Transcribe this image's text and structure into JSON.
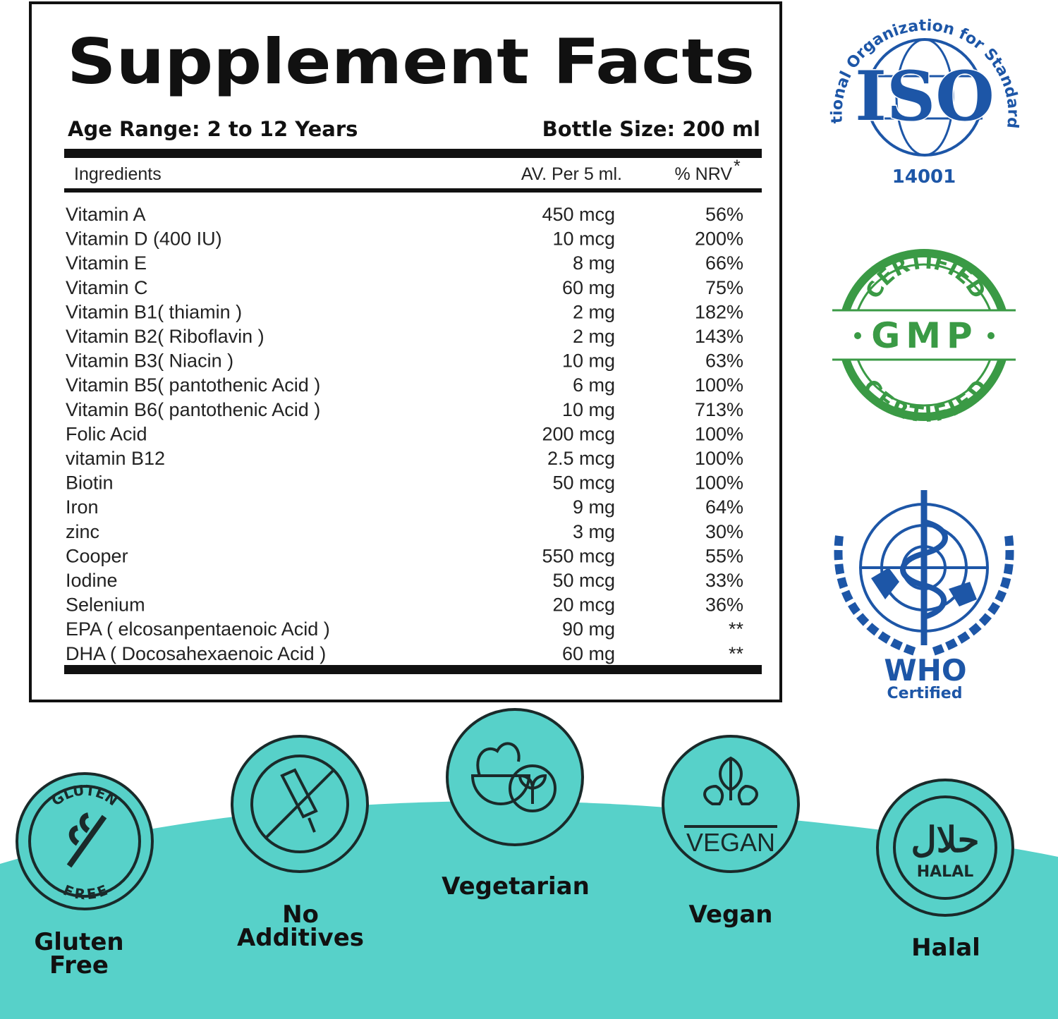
{
  "header": {
    "title": "Supplement Facts",
    "age_range": "Age Range: 2 to 12 Years",
    "bottle_size": "Bottle Size: 200 ml"
  },
  "table": {
    "columns": [
      "Ingredients",
      "AV. Per 5 ml.",
      "% NRV"
    ],
    "nrv_mark": "*",
    "rows": [
      [
        "Vitamin A",
        "450 mcg",
        "56%"
      ],
      [
        "Vitamin D (400 IU)",
        "10 mcg",
        "200%"
      ],
      [
        "Vitamin E",
        "8 mg",
        "66%"
      ],
      [
        "Vitamin C",
        "60 mg",
        "75%"
      ],
      [
        "Vitamin B1( thiamin )",
        "2 mg",
        "182%"
      ],
      [
        "Vitamin B2( Riboflavin )",
        "2 mg",
        "143%"
      ],
      [
        "Vitamin B3( Niacin )",
        "10 mg",
        "63%"
      ],
      [
        "Vitamin B5( pantothenic Acid )",
        "6 mg",
        "100%"
      ],
      [
        "Vitamin B6( pantothenic Acid )",
        "10 mg",
        "713%"
      ],
      [
        "Folic Acid",
        "200 mcg",
        "100%"
      ],
      [
        "vitamin B12",
        "2.5 mcg",
        "100%"
      ],
      [
        "Biotin",
        "50 mcg",
        "100%"
      ],
      [
        "Iron",
        "9 mg",
        "64%"
      ],
      [
        "zinc",
        "3 mg",
        "30%"
      ],
      [
        "Cooper",
        "550 mcg",
        "55%"
      ],
      [
        "Iodine",
        "50 mcg",
        "33%"
      ],
      [
        "Selenium",
        "20 mcg",
        "36%"
      ],
      [
        "EPA ( elcosanpentaenoic Acid )",
        "90 mg",
        "**"
      ],
      [
        "DHA ( Docosahexaenoic Acid )",
        "60 mg",
        "**"
      ]
    ]
  },
  "certifications": {
    "iso": {
      "ring_text": "International Organization for Standardization",
      "logo": "ISO",
      "number": "14001"
    },
    "gmp": {
      "top": "CERTIFIED",
      "center": "GMP",
      "bottom": "CERTIFIED"
    },
    "who": {
      "logo": "WHO",
      "caption": "Certified"
    }
  },
  "badges": {
    "gluten_free": {
      "icon_top": "GLUTEN",
      "icon_bottom": "FREE",
      "label": [
        "Gluten",
        "Free"
      ]
    },
    "no_additives": {
      "label": [
        "No",
        "Additives"
      ]
    },
    "vegetarian": {
      "label": "Vegetarian"
    },
    "vegan": {
      "icon_text": "VEGAN",
      "label": "Vegan"
    },
    "halal": {
      "icon_arabic": "حلال",
      "icon_text": "HALAL",
      "label": "Halal"
    }
  }
}
